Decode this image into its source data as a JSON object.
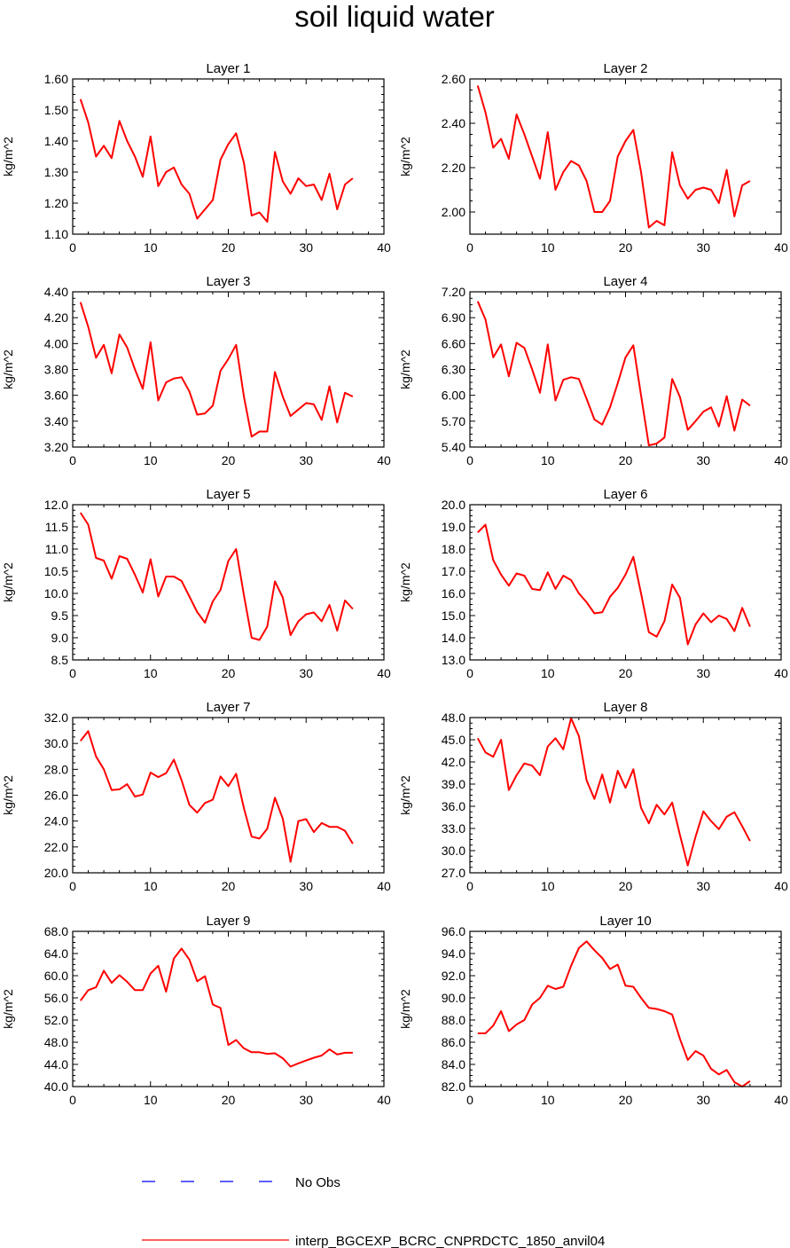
{
  "title": "soil liquid water",
  "legend": [
    {
      "label": "No Obs",
      "color": "#0000ff",
      "dash": "dashed"
    },
    {
      "label": "interp_BGCEXP_BCRC_CNPRDCTC_1850_anvil04",
      "color": "#ff0000",
      "dash": "solid"
    }
  ],
  "chart_data": [
    {
      "type": "line",
      "title": "Layer 1",
      "ylabel": "kg/m^2",
      "xlim": [
        0,
        40
      ],
      "ylim": [
        1.1,
        1.6
      ],
      "xticks": [
        "0",
        "10",
        "20",
        "30",
        "40"
      ],
      "yticks": [
        "1.10",
        "1.20",
        "1.30",
        "1.40",
        "1.50",
        "1.60"
      ],
      "series": [
        {
          "x": [
            1,
            2,
            3,
            4,
            5,
            6,
            7,
            8,
            9,
            10,
            11,
            12,
            13,
            14,
            15,
            16,
            17,
            18,
            19,
            20,
            21,
            22,
            23,
            24,
            25,
            26,
            27,
            28,
            29,
            30,
            31,
            32,
            33,
            34,
            35,
            36
          ],
          "values": [
            1.535,
            1.46,
            1.35,
            1.385,
            1.345,
            1.465,
            1.4,
            1.35,
            1.285,
            1.415,
            1.255,
            1.3,
            1.315,
            1.26,
            1.23,
            1.15,
            1.18,
            1.21,
            1.34,
            1.39,
            1.425,
            1.33,
            1.16,
            1.17,
            1.14,
            1.365,
            1.27,
            1.23,
            1.28,
            1.255,
            1.26,
            1.21,
            1.295,
            1.18,
            1.26,
            1.28
          ]
        }
      ]
    },
    {
      "type": "line",
      "title": "Layer 2",
      "ylabel": "kg/m^2",
      "xlim": [
        0,
        40
      ],
      "ylim": [
        1.9,
        2.6
      ],
      "xticks": [
        "0",
        "10",
        "20",
        "30",
        "40"
      ],
      "yticks": [
        "2.00",
        "2.20",
        "2.40",
        "2.60"
      ],
      "series": [
        {
          "x": [
            1,
            2,
            3,
            4,
            5,
            6,
            7,
            8,
            9,
            10,
            11,
            12,
            13,
            14,
            15,
            16,
            17,
            18,
            19,
            20,
            21,
            22,
            23,
            24,
            25,
            26,
            27,
            28,
            29,
            30,
            31,
            32,
            33,
            34,
            35,
            36
          ],
          "values": [
            2.57,
            2.45,
            2.29,
            2.33,
            2.24,
            2.44,
            2.35,
            2.25,
            2.15,
            2.36,
            2.1,
            2.18,
            2.23,
            2.21,
            2.14,
            2.0,
            2.0,
            2.05,
            2.25,
            2.32,
            2.37,
            2.18,
            1.93,
            1.96,
            1.94,
            2.27,
            2.12,
            2.06,
            2.1,
            2.11,
            2.1,
            2.04,
            2.19,
            1.98,
            2.12,
            2.14
          ]
        }
      ]
    },
    {
      "type": "line",
      "title": "Layer 3",
      "ylabel": "kg/m^2",
      "xlim": [
        0,
        40
      ],
      "ylim": [
        3.2,
        4.4
      ],
      "xticks": [
        "0",
        "10",
        "20",
        "30",
        "40"
      ],
      "yticks": [
        "3.20",
        "3.40",
        "3.60",
        "3.80",
        "4.00",
        "4.20",
        "4.40"
      ],
      "series": [
        {
          "x": [
            1,
            2,
            3,
            4,
            5,
            6,
            7,
            8,
            9,
            10,
            11,
            12,
            13,
            14,
            15,
            16,
            17,
            18,
            19,
            20,
            21,
            22,
            23,
            24,
            25,
            26,
            27,
            28,
            29,
            30,
            31,
            32,
            33,
            34,
            35,
            36
          ],
          "values": [
            4.32,
            4.13,
            3.89,
            3.99,
            3.77,
            4.07,
            3.97,
            3.8,
            3.65,
            4.01,
            3.56,
            3.7,
            3.73,
            3.74,
            3.63,
            3.45,
            3.46,
            3.52,
            3.79,
            3.88,
            3.99,
            3.59,
            3.28,
            3.32,
            3.32,
            3.78,
            3.59,
            3.44,
            3.49,
            3.54,
            3.53,
            3.41,
            3.67,
            3.39,
            3.62,
            3.59
          ]
        }
      ]
    },
    {
      "type": "line",
      "title": "Layer 4",
      "ylabel": "kg/m^2",
      "xlim": [
        0,
        40
      ],
      "ylim": [
        5.4,
        7.2
      ],
      "xticks": [
        "0",
        "10",
        "20",
        "30",
        "40"
      ],
      "yticks": [
        "5.40",
        "5.70",
        "6.00",
        "6.30",
        "6.60",
        "6.90",
        "7.20"
      ],
      "series": [
        {
          "x": [
            1,
            2,
            3,
            4,
            5,
            6,
            7,
            8,
            9,
            10,
            11,
            12,
            13,
            14,
            15,
            16,
            17,
            18,
            19,
            20,
            21,
            22,
            23,
            24,
            25,
            26,
            27,
            28,
            29,
            30,
            31,
            32,
            33,
            34,
            35,
            36
          ],
          "values": [
            7.09,
            6.88,
            6.44,
            6.59,
            6.22,
            6.61,
            6.55,
            6.3,
            6.03,
            6.59,
            5.94,
            6.18,
            6.21,
            6.19,
            5.96,
            5.72,
            5.66,
            5.86,
            6.14,
            6.44,
            6.58,
            6.0,
            5.42,
            5.44,
            5.51,
            6.19,
            5.98,
            5.6,
            5.7,
            5.81,
            5.86,
            5.64,
            5.99,
            5.59,
            5.95,
            5.88
          ]
        }
      ]
    },
    {
      "type": "line",
      "title": "Layer 5",
      "ylabel": "kg/m^2",
      "xlim": [
        0,
        40
      ],
      "ylim": [
        8.5,
        12.0
      ],
      "xticks": [
        "0",
        "10",
        "20",
        "30",
        "40"
      ],
      "yticks": [
        "8.5",
        "9.0",
        "9.5",
        "10.0",
        "10.5",
        "11.0",
        "11.5",
        "12.0"
      ],
      "series": [
        {
          "x": [
            1,
            2,
            3,
            4,
            5,
            6,
            7,
            8,
            9,
            10,
            11,
            12,
            13,
            14,
            15,
            16,
            17,
            18,
            19,
            20,
            21,
            22,
            23,
            24,
            25,
            26,
            27,
            28,
            29,
            30,
            31,
            32,
            33,
            34,
            35,
            36
          ],
          "values": [
            11.82,
            11.55,
            10.8,
            10.74,
            10.33,
            10.84,
            10.78,
            10.42,
            10.02,
            10.77,
            9.93,
            10.38,
            10.38,
            10.28,
            9.93,
            9.58,
            9.34,
            9.82,
            10.08,
            10.73,
            11.0,
            9.96,
            9.0,
            8.95,
            9.25,
            10.27,
            9.91,
            9.06,
            9.37,
            9.53,
            9.57,
            9.37,
            9.74,
            9.16,
            9.84,
            9.65
          ]
        }
      ]
    },
    {
      "type": "line",
      "title": "Layer 6",
      "ylabel": "kg/m^2",
      "xlim": [
        0,
        40
      ],
      "ylim": [
        13.0,
        20.0
      ],
      "xticks": [
        "0",
        "10",
        "20",
        "30",
        "40"
      ],
      "yticks": [
        "13.0",
        "14.0",
        "15.0",
        "16.0",
        "17.0",
        "18.0",
        "19.0",
        "20.0"
      ],
      "series": [
        {
          "x": [
            1,
            2,
            3,
            4,
            5,
            6,
            7,
            8,
            9,
            10,
            11,
            12,
            13,
            14,
            15,
            16,
            17,
            18,
            19,
            20,
            21,
            22,
            23,
            24,
            25,
            26,
            27,
            28,
            29,
            30,
            31,
            32,
            33,
            34,
            35,
            36
          ],
          "values": [
            18.75,
            19.1,
            17.5,
            16.85,
            16.35,
            16.9,
            16.8,
            16.2,
            16.15,
            16.95,
            16.2,
            16.8,
            16.6,
            16.0,
            15.6,
            15.1,
            15.15,
            15.85,
            16.25,
            16.85,
            17.65,
            16.0,
            14.25,
            14.05,
            14.75,
            16.4,
            15.8,
            13.7,
            14.6,
            15.1,
            14.7,
            15.0,
            14.85,
            14.3,
            15.35,
            14.5
          ]
        }
      ]
    },
    {
      "type": "line",
      "title": "Layer 7",
      "ylabel": "kg/m^2",
      "xlim": [
        0,
        40
      ],
      "ylim": [
        20.0,
        32.0
      ],
      "xticks": [
        "0",
        "10",
        "20",
        "30",
        "40"
      ],
      "yticks": [
        "20.0",
        "22.0",
        "24.0",
        "26.0",
        "28.0",
        "30.0",
        "32.0"
      ],
      "series": [
        {
          "x": [
            1,
            2,
            3,
            4,
            5,
            6,
            7,
            8,
            9,
            10,
            11,
            12,
            13,
            14,
            15,
            16,
            17,
            18,
            19,
            20,
            21,
            22,
            23,
            24,
            25,
            26,
            27,
            28,
            29,
            30,
            31,
            32,
            33,
            34,
            35,
            36
          ],
          "values": [
            30.2,
            30.95,
            29.0,
            28.0,
            26.4,
            26.45,
            26.85,
            25.9,
            26.05,
            27.75,
            27.4,
            27.7,
            28.75,
            27.15,
            25.25,
            24.65,
            25.4,
            25.65,
            27.45,
            26.7,
            27.65,
            25.0,
            22.8,
            22.65,
            23.4,
            25.8,
            24.2,
            20.85,
            24.0,
            24.15,
            23.15,
            23.85,
            23.55,
            23.55,
            23.25,
            22.25
          ]
        }
      ]
    },
    {
      "type": "line",
      "title": "Layer 8",
      "ylabel": "kg/m^2",
      "xlim": [
        0,
        40
      ],
      "ylim": [
        27.0,
        48.0
      ],
      "xticks": [
        "0",
        "10",
        "20",
        "30",
        "40"
      ],
      "yticks": [
        "27.0",
        "30.0",
        "33.0",
        "36.0",
        "39.0",
        "42.0",
        "45.0",
        "48.0"
      ],
      "series": [
        {
          "x": [
            1,
            2,
            3,
            4,
            5,
            6,
            7,
            8,
            9,
            10,
            11,
            12,
            13,
            14,
            15,
            16,
            17,
            18,
            19,
            20,
            21,
            22,
            23,
            24,
            25,
            26,
            27,
            28,
            29,
            30,
            31,
            32,
            33,
            34,
            35,
            36
          ],
          "values": [
            45.2,
            43.3,
            42.7,
            45.0,
            38.2,
            40.2,
            41.8,
            41.5,
            40.2,
            44.1,
            45.2,
            43.7,
            47.9,
            45.5,
            39.5,
            37.0,
            40.3,
            36.5,
            40.8,
            38.5,
            41.0,
            35.8,
            33.7,
            36.2,
            34.9,
            36.5,
            32.1,
            28.0,
            31.9,
            35.3,
            34.0,
            32.9,
            34.6,
            35.2,
            33.3,
            31.3
          ]
        }
      ]
    },
    {
      "type": "line",
      "title": "Layer 9",
      "ylabel": "kg/m^2",
      "xlim": [
        0,
        40
      ],
      "ylim": [
        40.0,
        68.0
      ],
      "xticks": [
        "0",
        "10",
        "20",
        "30",
        "40"
      ],
      "yticks": [
        "40.0",
        "44.0",
        "48.0",
        "52.0",
        "56.0",
        "60.0",
        "64.0",
        "68.0"
      ],
      "series": [
        {
          "x": [
            1,
            2,
            3,
            4,
            5,
            6,
            7,
            8,
            9,
            10,
            11,
            12,
            13,
            14,
            15,
            16,
            17,
            18,
            19,
            20,
            21,
            22,
            23,
            24,
            25,
            26,
            27,
            28,
            29,
            30,
            31,
            32,
            33,
            34,
            35,
            36
          ],
          "values": [
            55.5,
            57.4,
            57.9,
            60.9,
            58.7,
            60.1,
            58.9,
            57.4,
            57.4,
            60.4,
            61.8,
            57.1,
            63.1,
            64.9,
            62.9,
            59.0,
            59.9,
            54.8,
            54.2,
            47.5,
            48.4,
            46.9,
            46.2,
            46.2,
            45.9,
            46.0,
            45.1,
            43.6,
            44.2,
            44.7,
            45.2,
            45.6,
            46.7,
            45.8,
            46.1,
            46.1
          ]
        }
      ]
    },
    {
      "type": "line",
      "title": "Layer 10",
      "ylabel": "kg/m^2",
      "xlim": [
        0,
        40
      ],
      "ylim": [
        82.0,
        96.0
      ],
      "xticks": [
        "0",
        "10",
        "20",
        "30",
        "40"
      ],
      "yticks": [
        "82.0",
        "84.0",
        "86.0",
        "88.0",
        "90.0",
        "92.0",
        "94.0",
        "96.0"
      ],
      "series": [
        {
          "x": [
            1,
            2,
            3,
            4,
            5,
            6,
            7,
            8,
            9,
            10,
            11,
            12,
            13,
            14,
            15,
            16,
            17,
            18,
            19,
            20,
            21,
            22,
            23,
            24,
            25,
            26,
            27,
            28,
            29,
            30,
            31,
            32,
            33,
            34,
            35,
            36
          ],
          "values": [
            86.8,
            86.8,
            87.5,
            88.8,
            87.0,
            87.6,
            88.0,
            89.4,
            90.0,
            91.1,
            90.8,
            91.0,
            92.9,
            94.5,
            95.1,
            94.3,
            93.6,
            92.6,
            93.0,
            91.1,
            91.0,
            90.0,
            89.1,
            89.0,
            88.8,
            88.5,
            86.3,
            84.4,
            85.2,
            84.8,
            83.6,
            83.1,
            83.5,
            82.4,
            82.0,
            82.5
          ]
        }
      ]
    }
  ]
}
